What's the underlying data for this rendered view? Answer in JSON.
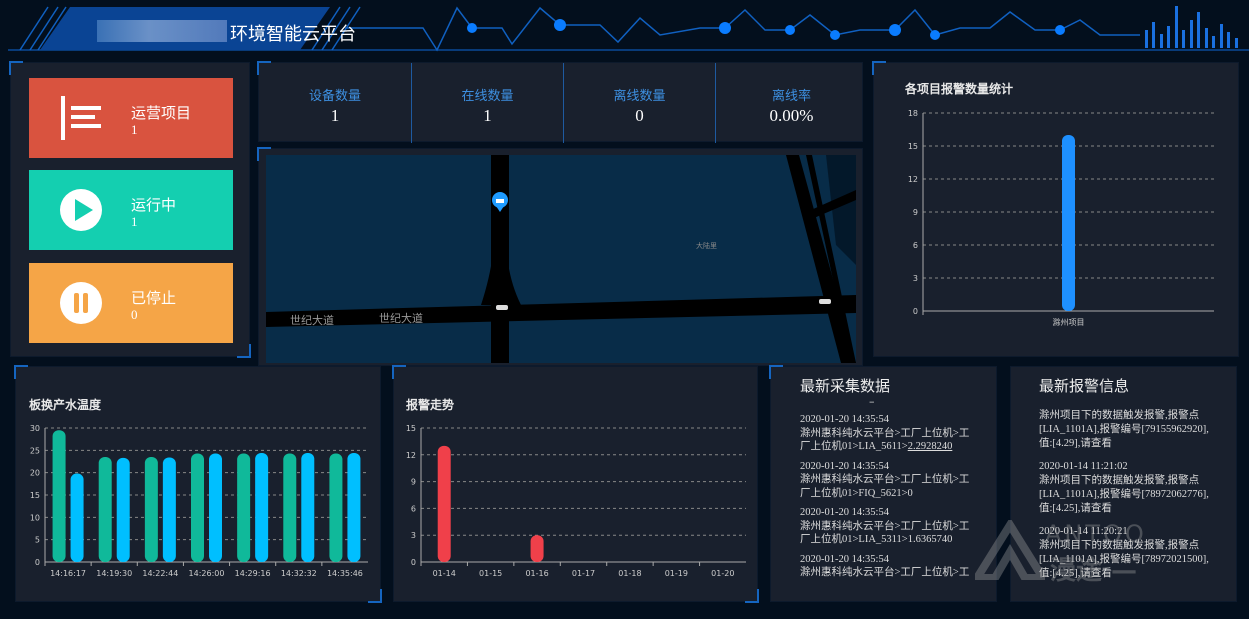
{
  "header": {
    "title_suffix": "环境智能云平台"
  },
  "status_cards": [
    {
      "label": "运营项目",
      "value": "1",
      "icon": "list-icon",
      "color": "#d9533f"
    },
    {
      "label": "运行中",
      "value": "1",
      "icon": "play-icon",
      "color": "#14cfb0"
    },
    {
      "label": "已停止",
      "value": "0",
      "icon": "pause-icon",
      "color": "#f5a547"
    }
  ],
  "stats": [
    {
      "label": "设备数量",
      "value": "1"
    },
    {
      "label": "在线数量",
      "value": "1"
    },
    {
      "label": "离线数量",
      "value": "0"
    },
    {
      "label": "离线率",
      "value": "0.00%"
    }
  ],
  "map": {
    "road_labels": [
      "世纪大道",
      "世纪大道"
    ],
    "place_label": "大陆里",
    "marker_icon": "device-marker-icon"
  },
  "chart_data": [
    {
      "id": "project-alarm",
      "type": "bar",
      "title": "各项目报警数量统计",
      "categories": [
        "滁州项目"
      ],
      "series": [
        {
          "values": [
            16
          ],
          "color": "#1e90ff"
        }
      ],
      "ylim": [
        0,
        18
      ],
      "yticks": [
        0,
        3,
        6,
        9,
        12,
        15,
        18
      ],
      "grid": true
    },
    {
      "id": "temperature",
      "type": "bar",
      "title": "板换产水温度",
      "categories": [
        "14:16:17",
        "14:19:30",
        "14:22:44",
        "14:26:00",
        "14:29:16",
        "14:32:32",
        "14:35:46"
      ],
      "series": [
        {
          "values": [
            29.5,
            23.5,
            23.5,
            24.3,
            24.3,
            24.3,
            24.3
          ],
          "color": "#10b99a"
        },
        {
          "values": [
            19.8,
            23.3,
            23.4,
            24.3,
            24.4,
            24.4,
            24.4
          ],
          "color": "#00bfff"
        }
      ],
      "ylim": [
        0,
        30
      ],
      "yticks": [
        0,
        5,
        10,
        15,
        20,
        25,
        30
      ],
      "grid": true
    },
    {
      "id": "alarm-trend",
      "type": "bar",
      "title": "报警走势",
      "categories": [
        "01-14",
        "01-15",
        "01-16",
        "01-17",
        "01-18",
        "01-19",
        "01-20"
      ],
      "series": [
        {
          "values": [
            13,
            0,
            3,
            0,
            0,
            0,
            0
          ],
          "color": "#f0404a"
        }
      ],
      "ylim": [
        0,
        15
      ],
      "yticks": [
        0,
        3,
        6,
        9,
        12,
        15
      ],
      "grid": true
    }
  ],
  "latest_data": {
    "title": "最新采集数据",
    "dash": "–",
    "items": [
      {
        "time": "2020-01-20 14:35:54",
        "text": "滁州惠科纯水云平台>工厂上位机>工厂上位机01>LIA_5611>",
        "value": "2.2928240"
      },
      {
        "time": "2020-01-20 14:35:54",
        "text": "滁州惠科纯水云平台>工厂上位机>工厂上位机01>FIQ_5621>0",
        "value": ""
      },
      {
        "time": "2020-01-20 14:35:54",
        "text": "滁州惠科纯水云平台>工厂上位机>工厂上位机01>LIA_5311>1.6365740",
        "value": ""
      },
      {
        "time": "2020-01-20 14:35:54",
        "text": "滁州惠科纯水云平台>工厂上位机>工",
        "value": ""
      }
    ]
  },
  "latest_alarms": {
    "title": "最新报警信息",
    "items": [
      {
        "time": "",
        "text": "滁州项目下的数据触发报警,报警点[LIA_1101A],报警编号[79155962920],值:[4.29],请查看"
      },
      {
        "time": "2020-01-14 11:21:02",
        "text": "滁州项目下的数据触发报警,报警点[LIA_1101A],报警编号[78972062776],值:[4.25],请查看"
      },
      {
        "time": "2020-01-14 11:20:21",
        "text": "滁州项目下的数据触发报警,报警点[LIA_1101A],报警编号[78972021500],值:[4.25],请查看"
      }
    ]
  },
  "watermark": {
    "text": "MANTOO 漫途"
  }
}
